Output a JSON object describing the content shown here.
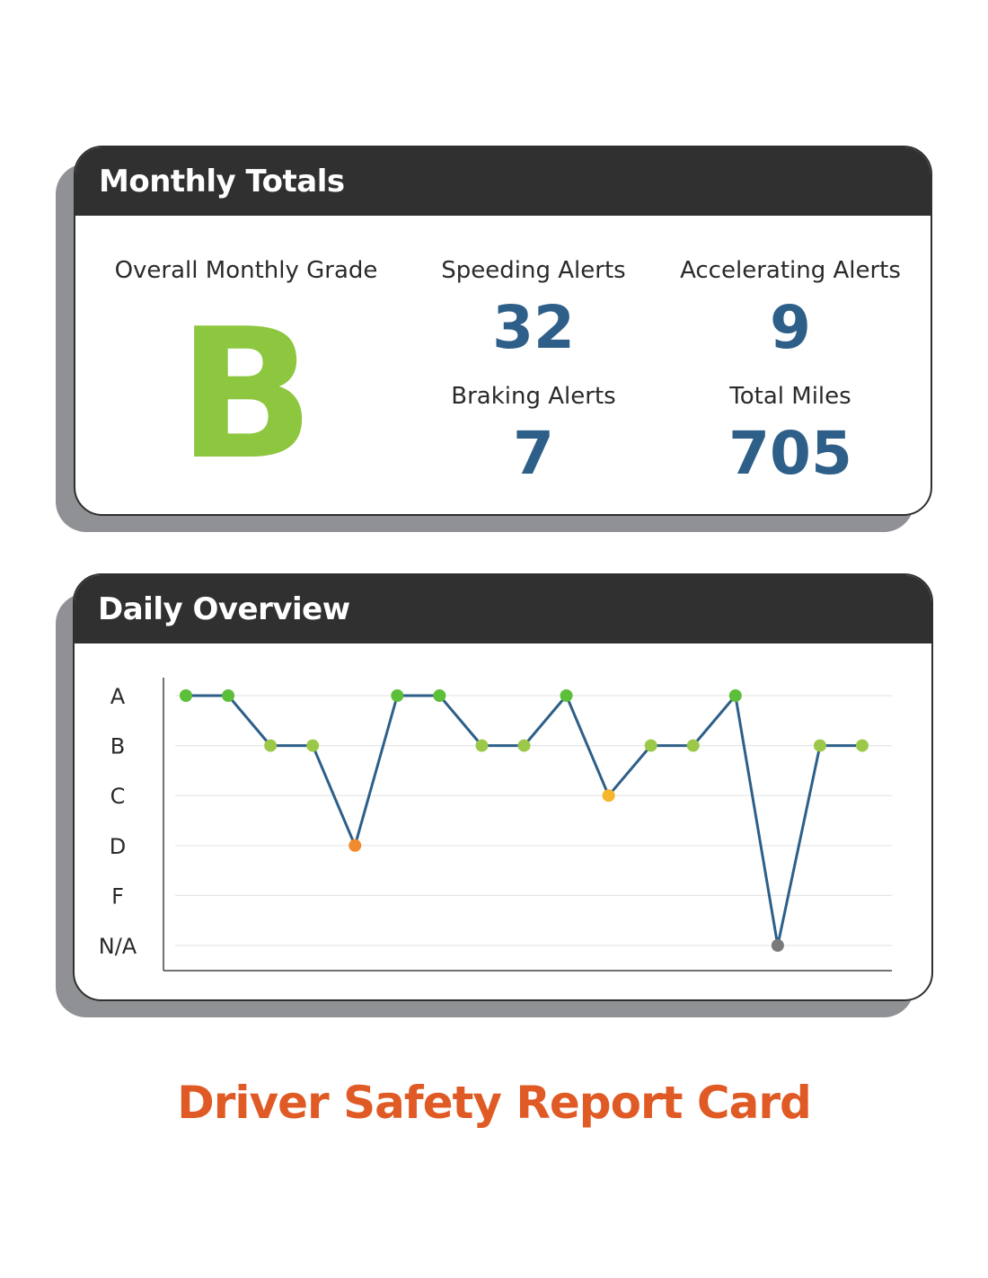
{
  "colors": {
    "header_bg": "#303030",
    "value_blue": "#2d5f88",
    "grade_green": "#8dc63f",
    "title_orange": "#e05a25",
    "line": "#2d5f88",
    "point_grade_a": "#5cbf3a",
    "point_grade_b": "#9cc84a",
    "point_grade_c": "#f7b52b",
    "point_grade_d": "#f28a2e",
    "point_na": "#7a7a7a"
  },
  "monthly_totals": {
    "title": "Monthly Totals",
    "grade_label": "Overall Monthly Grade",
    "grade_value": "B",
    "speeding_label": "Speeding Alerts",
    "speeding_value": "32",
    "accelerating_label": "Accelerating Alerts",
    "accelerating_value": "9",
    "braking_label": "Braking Alerts",
    "braking_value": "7",
    "miles_label": "Total Miles",
    "miles_value": "705"
  },
  "daily_overview": {
    "title": "Daily Overview"
  },
  "report_title": "Driver Safety Report Card",
  "chart_data": {
    "type": "line",
    "title": "",
    "xlabel": "",
    "ylabel": "",
    "y_categories": [
      "A",
      "B",
      "C",
      "D",
      "F",
      "N/A"
    ],
    "grid": true,
    "legend": "none",
    "values": [
      "A",
      "A",
      "B",
      "B",
      "D",
      "A",
      "A",
      "B",
      "B",
      "A",
      "C",
      "B",
      "B",
      "A",
      "N/A",
      "B",
      "B"
    ]
  }
}
